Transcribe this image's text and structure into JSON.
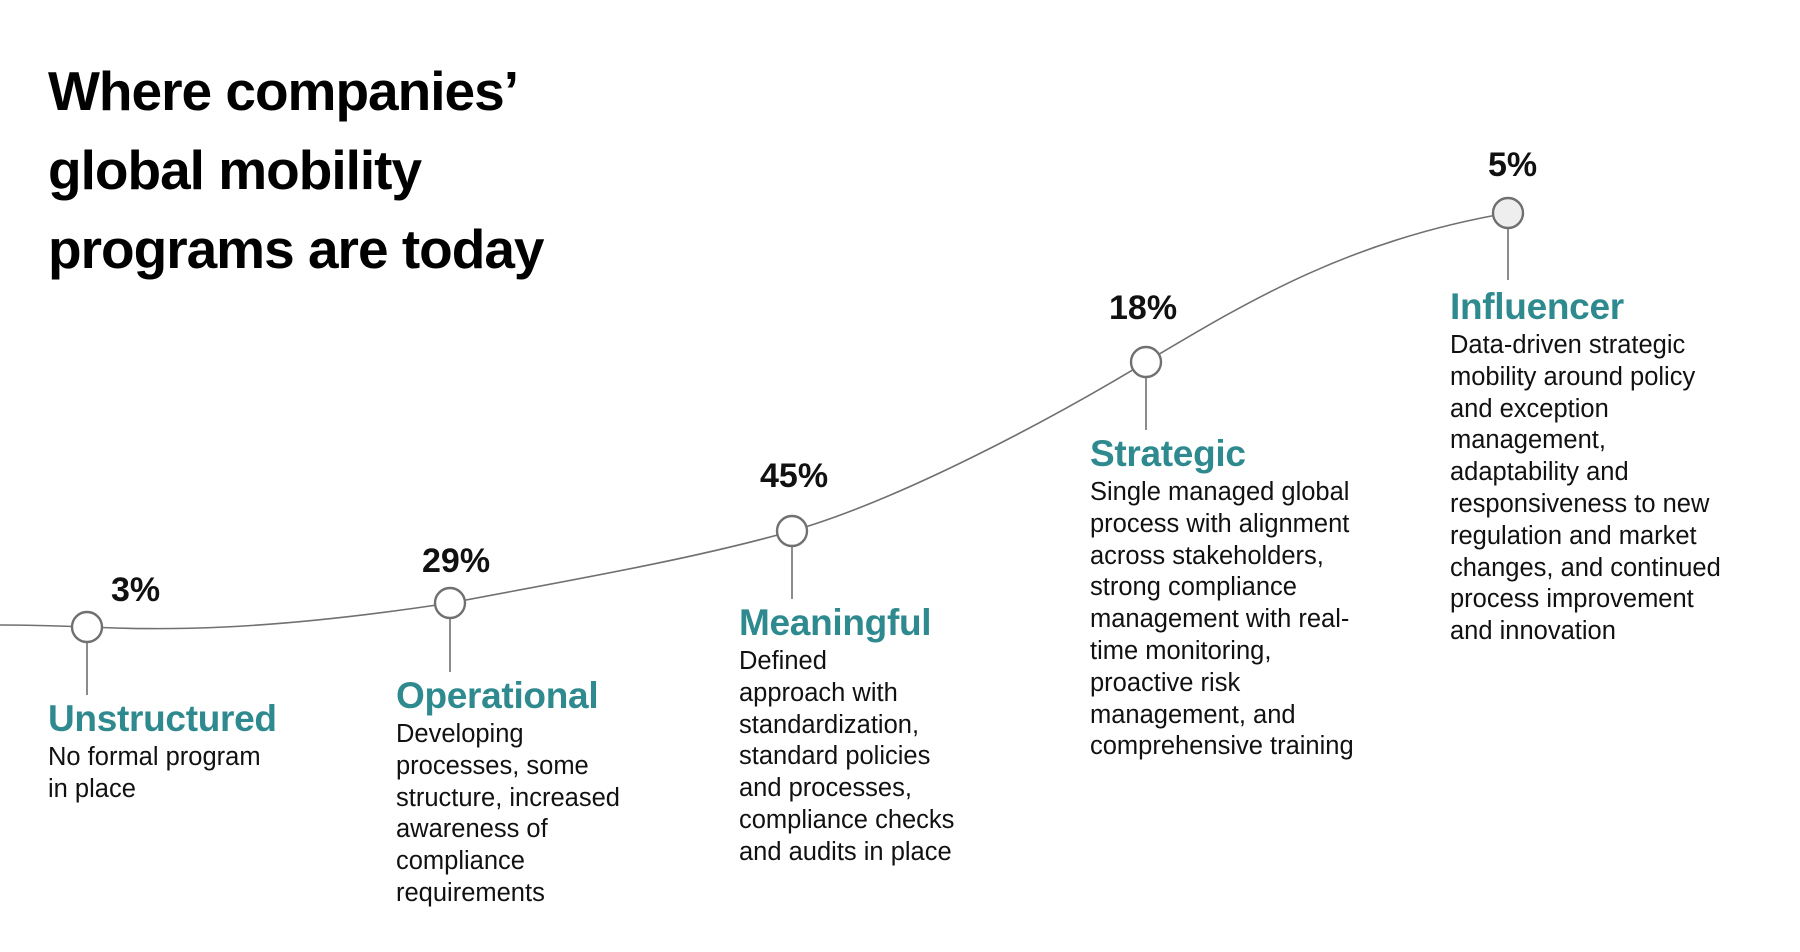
{
  "title": {
    "lines": [
      "Where companies’",
      "global mobility",
      "programs are today"
    ]
  },
  "colors": {
    "accent": "#2e8a8e",
    "text": "#111111",
    "line": "#707070"
  },
  "stages": [
    {
      "name": "Unstructured",
      "percent": "3%",
      "value": 3,
      "lines": [
        "No formal program",
        "in place"
      ]
    },
    {
      "name": "Operational",
      "percent": "29%",
      "value": 29,
      "lines": [
        "Developing",
        "processes, some",
        "structure, increased",
        "awareness of",
        "compliance",
        "requirements"
      ]
    },
    {
      "name": "Meaningful",
      "percent": "45%",
      "value": 45,
      "lines": [
        "Defined",
        "approach with",
        "standardization,",
        "standard policies",
        "and processes,",
        "compliance checks",
        "and audits in place"
      ]
    },
    {
      "name": "Strategic",
      "percent": "18%",
      "value": 18,
      "lines": [
        "Single managed global",
        "process with alignment",
        "across stakeholders,",
        "strong compliance",
        "management with real-",
        "time monitoring,",
        "proactive risk",
        "management, and",
        "comprehensive training"
      ]
    },
    {
      "name": "Influencer",
      "percent": "5%",
      "value": 5,
      "lines": [
        "Data-driven strategic",
        "mobility around policy",
        "and exception",
        "management,",
        "adaptability and",
        "responsiveness to new",
        "regulation and market",
        "changes, and continued",
        "process improvement",
        "and innovation"
      ]
    }
  ]
}
